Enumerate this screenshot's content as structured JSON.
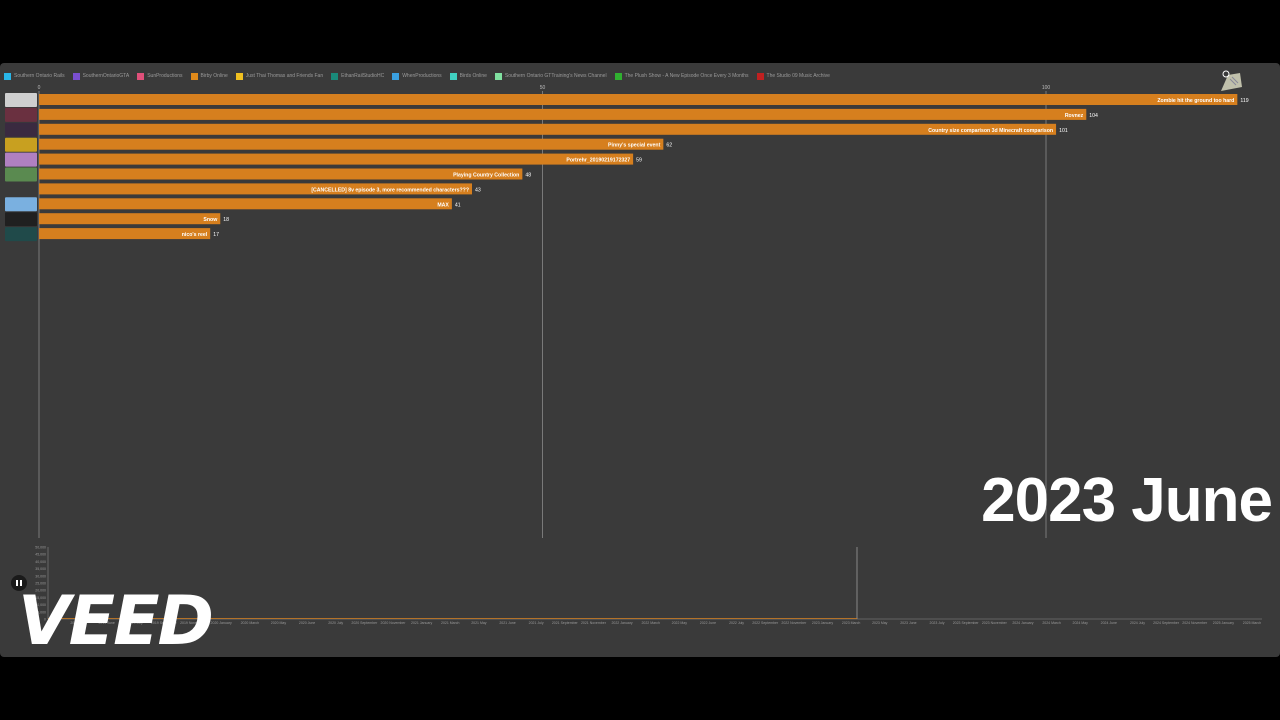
{
  "legend": [
    {
      "name": "Southern Ontario Rails",
      "color": "#29b6e8"
    },
    {
      "name": "SouthernOntarioGTA",
      "color": "#7a4fd0"
    },
    {
      "name": "SunProductions",
      "color": "#e0507a"
    },
    {
      "name": "Birby Online",
      "color": "#e08a1a"
    },
    {
      "name": "Just Thai Thomas and Friends Fan",
      "color": "#f0c020"
    },
    {
      "name": "EthanRailStudioHC",
      "color": "#1a8a7a"
    },
    {
      "name": "WhenProductions",
      "color": "#3aa0e0"
    },
    {
      "name": "Birds Online",
      "color": "#40d0c0"
    },
    {
      "name": "Southern Ontario GTTraining's News Channel",
      "color": "#80e0a0"
    },
    {
      "name": "The Plush Show - A New Episode Once Every 3 Months",
      "color": "#30b030"
    },
    {
      "name": "The Studio 09 Music Archive",
      "color": "#c02020"
    }
  ],
  "period_label": "2023 June",
  "watermark": "VEED",
  "chart_data": {
    "type": "bar",
    "orientation": "horizontal",
    "title": "",
    "xlim": [
      0,
      120
    ],
    "xticks": [
      "0",
      "50",
      "100"
    ],
    "bar_color": "#d67f1e",
    "categories": [
      "Zombie hit the ground too hard",
      "Rovnez",
      "Country size comparison 3d Minecraft comparison",
      "Pinny's special event",
      "Portrehr_20190219172327",
      "Playing Country Collection",
      "[CANCELLED] 8v episode 3, more recommended characters???",
      "MAX",
      "Snow",
      "nico's reel"
    ],
    "values": [
      119,
      104,
      101,
      62,
      59,
      48,
      43,
      41,
      18,
      17
    ]
  },
  "timeline": {
    "yticks": [
      "50,000",
      "45,000",
      "40,000",
      "35,000",
      "30,000",
      "25,000",
      "20,000",
      "15,000",
      "10,000",
      "5,000",
      "0"
    ],
    "xticks": [
      "2019 May",
      "2019 June",
      "2019 July",
      "2019 September",
      "2019 November",
      "2020 January",
      "2020 March",
      "2020 May",
      "2020 June",
      "2020 July",
      "2020 September",
      "2020 November",
      "2021 January",
      "2021 March",
      "2021 May",
      "2021 June",
      "2021 July",
      "2021 September",
      "2021 November",
      "2022 January",
      "2022 March",
      "2022 May",
      "2022 June",
      "2022 July",
      "2022 September",
      "2022 November",
      "2023 January",
      "2023 March",
      "2023 May",
      "2023 June",
      "2023 July",
      "2023 September",
      "2023 November",
      "2024 January",
      "2024 March",
      "2024 May",
      "2024 June",
      "2024 July",
      "2024 September",
      "2024 November",
      "2025 January",
      "2025 March"
    ]
  }
}
